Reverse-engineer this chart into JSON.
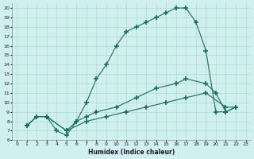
{
  "xlabel": "Humidex (Indice chaleur)",
  "bg_color": "#cff0ee",
  "grid_color": "#b0d8d0",
  "line_color": "#1a6e60",
  "xlim": [
    -0.5,
    23.5
  ],
  "ylim": [
    6,
    20.5
  ],
  "xticks": [
    0,
    1,
    2,
    3,
    4,
    5,
    6,
    7,
    8,
    9,
    10,
    11,
    12,
    13,
    14,
    15,
    16,
    17,
    18,
    19,
    20,
    21,
    22,
    23
  ],
  "yticks": [
    6,
    7,
    8,
    9,
    10,
    11,
    12,
    13,
    14,
    15,
    16,
    17,
    18,
    19,
    20
  ],
  "curve1_x": [
    1,
    2,
    3,
    4,
    5,
    6,
    7,
    8,
    9,
    10,
    11,
    12,
    13,
    14,
    15,
    16,
    17,
    18,
    19,
    20,
    21,
    22
  ],
  "curve1_y": [
    7.5,
    8.5,
    8.5,
    7,
    6.5,
    8,
    10,
    12.5,
    14,
    16,
    17.5,
    18,
    18.5,
    19,
    19.5,
    20,
    20,
    18.5,
    15.5,
    9,
    9,
    9.5
  ],
  "curve2_x": [
    1,
    2,
    3,
    5,
    6,
    7,
    8,
    10,
    12,
    14,
    16,
    17,
    19,
    20,
    21,
    22
  ],
  "curve2_y": [
    7.5,
    8.5,
    8.5,
    7,
    8,
    8.5,
    9,
    9.5,
    10.5,
    11.5,
    12,
    12.5,
    12,
    11,
    9,
    9.5
  ],
  "curve3_x": [
    1,
    2,
    3,
    5,
    7,
    9,
    11,
    13,
    15,
    17,
    19,
    21,
    22
  ],
  "curve3_y": [
    7.5,
    8.5,
    8.5,
    7,
    8,
    8.5,
    9,
    9.5,
    10,
    10.5,
    11,
    9.5,
    9.5
  ]
}
